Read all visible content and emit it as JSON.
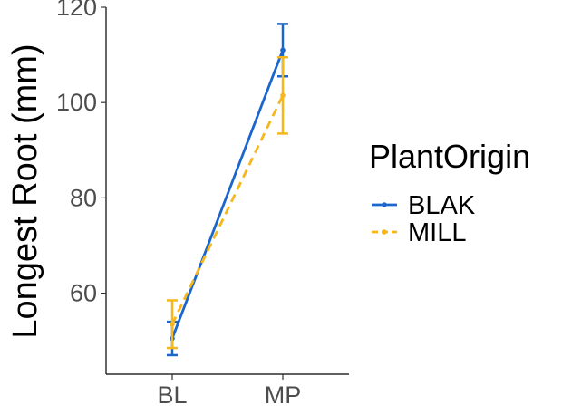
{
  "chart_data": {
    "type": "line",
    "title": "",
    "xlabel": "",
    "ylabel": "Longest Root (mm)",
    "categories": [
      "BL",
      "MP"
    ],
    "ylim": [
      43,
      120
    ],
    "yticks": [
      60,
      80,
      100,
      120
    ],
    "grid": false,
    "legend": {
      "title": "PlantOrigin",
      "position": "right"
    },
    "series": [
      {
        "name": "BLAK",
        "color": "#1a66cc",
        "line_style": "solid",
        "values": [
          50.5,
          111.0
        ],
        "error_low": [
          47.0,
          105.5
        ],
        "error_high": [
          54.0,
          116.5
        ]
      },
      {
        "name": "MILL",
        "color": "#f5b71b",
        "line_style": "dashed",
        "values": [
          53.5,
          101.5
        ],
        "error_low": [
          48.5,
          93.5
        ],
        "error_high": [
          58.5,
          109.5
        ]
      }
    ]
  }
}
